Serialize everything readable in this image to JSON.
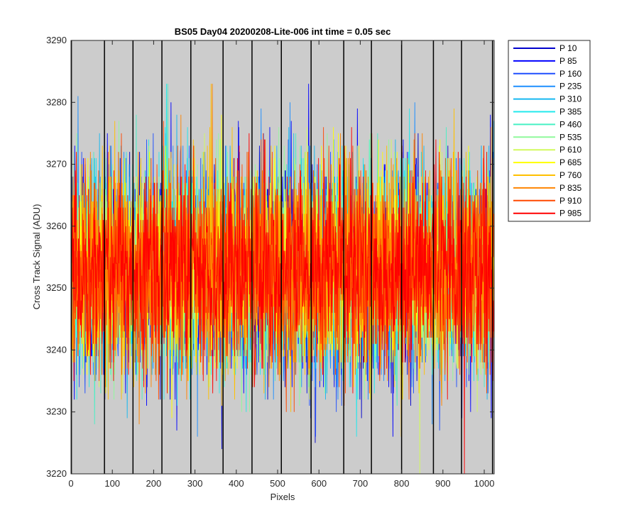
{
  "chart_data": {
    "type": "line",
    "title": "BS05 Day04 20200208-Lite-006 int time = 0.05 sec",
    "xlabel": "Pixels",
    "ylabel": "Cross Track Signal (ADU)",
    "xlim": [
      0,
      1024
    ],
    "ylim": [
      3220,
      3290
    ],
    "xticks": [
      0,
      100,
      200,
      300,
      400,
      500,
      600,
      700,
      800,
      900,
      1000
    ],
    "yticks": [
      3220,
      3230,
      3240,
      3250,
      3260,
      3270,
      3280,
      3290
    ],
    "background_color": "#cccccc",
    "grid": false,
    "legend_position": "outside-top-right",
    "vertical_markers": [
      1,
      81,
      150,
      220,
      290,
      368,
      438,
      509,
      581,
      660,
      727,
      800,
      877,
      945,
      1020
    ],
    "noise_model": {
      "mean": 3253,
      "std": 8,
      "min_observed": 3220,
      "max_observed": 3283
    },
    "series": [
      {
        "name": "P 10",
        "color": "#0000cc"
      },
      {
        "name": "P 85",
        "color": "#0000ff"
      },
      {
        "name": "P 160",
        "color": "#1f4fff"
      },
      {
        "name": "P 235",
        "color": "#1f8fff"
      },
      {
        "name": "P 310",
        "color": "#15b8f0"
      },
      {
        "name": "P 385",
        "color": "#22e8ec"
      },
      {
        "name": "P 460",
        "color": "#47f0c4"
      },
      {
        "name": "P 535",
        "color": "#8ff99b"
      },
      {
        "name": "P 610",
        "color": "#d2fa5e"
      },
      {
        "name": "P 685",
        "color": "#ffff00"
      },
      {
        "name": "P 760",
        "color": "#ffc000"
      },
      {
        "name": "P 835",
        "color": "#ff8400"
      },
      {
        "name": "P 910",
        "color": "#ff4800"
      },
      {
        "name": "P 985",
        "color": "#ff0000"
      }
    ]
  }
}
